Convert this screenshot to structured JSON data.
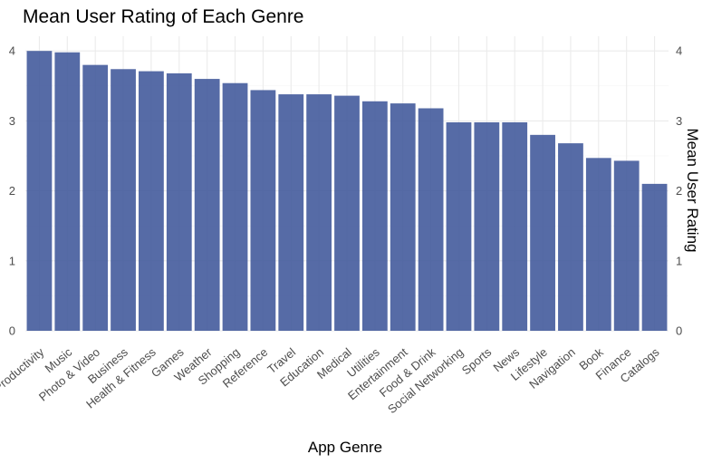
{
  "chart_data": {
    "type": "bar",
    "title": "Mean User Rating of Each Genre",
    "xlabel": "App Genre",
    "ylabel": "Mean User Rating",
    "categories": [
      "Productivity",
      "Music",
      "Photo & Video",
      "Business",
      "Health & Fitness",
      "Games",
      "Weather",
      "Shopping",
      "Reference",
      "Travel",
      "Education",
      "Medical",
      "Utilities",
      "Entertainment",
      "Food & Drink",
      "Social Networking",
      "Sports",
      "News",
      "Lifestyle",
      "Navigation",
      "Book",
      "Finance",
      "Catalogs"
    ],
    "values": [
      4.0,
      3.98,
      3.8,
      3.74,
      3.71,
      3.68,
      3.6,
      3.54,
      3.44,
      3.38,
      3.38,
      3.36,
      3.28,
      3.25,
      3.18,
      2.98,
      2.98,
      2.98,
      2.8,
      2.68,
      2.47,
      2.43,
      2.1
    ],
    "ylim": [
      0,
      4.2
    ],
    "yticks": [
      0,
      1,
      2,
      3,
      4
    ],
    "secondary_y_axis": true,
    "grid": true,
    "bar_color": "#3f569a"
  }
}
